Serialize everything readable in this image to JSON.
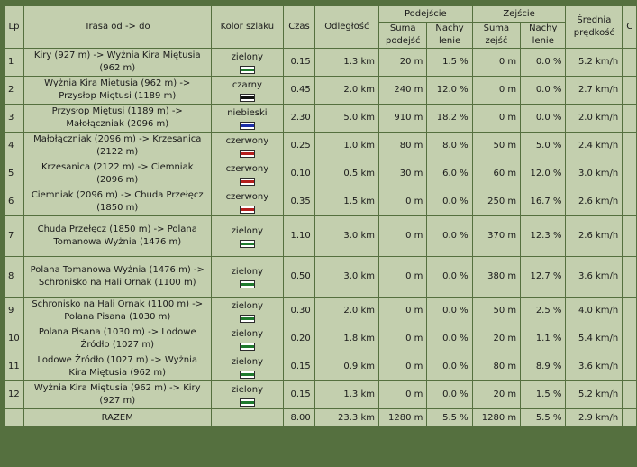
{
  "headers": {
    "lp": "Lp",
    "route": "Trasa od -> do",
    "trail_color": "Kolor szlaku",
    "time": "Czas",
    "distance": "Odległość",
    "ascent": "Podejście",
    "descent": "Zejście",
    "ascent_sum": "Suma podejść",
    "ascent_grade": "Nachy lenie",
    "descent_sum": "Suma zejść",
    "descent_grade": "Nachy lenie",
    "speed": "Średnia prędkość",
    "extra": "C"
  },
  "colors": {
    "zielony": "#1f7a2e",
    "czarny": "#111111",
    "niebieski": "#1c2fa8",
    "czerwony": "#b41e1e"
  },
  "rows": [
    {
      "lp": "1",
      "route": "Kiry (927 m) -> Wyżnia Kira Miętusia (962 m)",
      "trail": "zielony",
      "time": "0.15",
      "dist": "1.3 km",
      "asum": "20 m",
      "agrade": "1.5 %",
      "dsum": "0 m",
      "dgrade": "0.0 %",
      "speed": "5.2 km/h"
    },
    {
      "lp": "2",
      "route": "Wyżnia Kira Miętusia (962 m) -> Przysłop Miętusi (1189 m)",
      "trail": "czarny",
      "time": "0.45",
      "dist": "2.0 km",
      "asum": "240 m",
      "agrade": "12.0 %",
      "dsum": "0 m",
      "dgrade": "0.0 %",
      "speed": "2.7 km/h"
    },
    {
      "lp": "3",
      "route": "Przysłop Miętusi (1189 m) -> Małołączniak (2096 m)",
      "trail": "niebieski",
      "time": "2.30",
      "dist": "5.0 km",
      "asum": "910 m",
      "agrade": "18.2 %",
      "dsum": "0 m",
      "dgrade": "0.0 %",
      "speed": "2.0 km/h"
    },
    {
      "lp": "4",
      "route": "Małołączniak (2096 m) -> Krzesanica (2122 m)",
      "trail": "czerwony",
      "time": "0.25",
      "dist": "1.0 km",
      "asum": "80 m",
      "agrade": "8.0 %",
      "dsum": "50 m",
      "dgrade": "5.0 %",
      "speed": "2.4 km/h"
    },
    {
      "lp": "5",
      "route": "Krzesanica (2122 m) -> Ciemniak (2096 m)",
      "trail": "czerwony",
      "time": "0.10",
      "dist": "0.5 km",
      "asum": "30 m",
      "agrade": "6.0 %",
      "dsum": "60 m",
      "dgrade": "12.0 %",
      "speed": "3.0 km/h"
    },
    {
      "lp": "6",
      "route": "Ciemniak (2096 m) -> Chuda Przełęcz (1850 m)",
      "trail": "czerwony",
      "time": "0.35",
      "dist": "1.5 km",
      "asum": "0 m",
      "agrade": "0.0 %",
      "dsum": "250 m",
      "dgrade": "16.7 %",
      "speed": "2.6 km/h"
    },
    {
      "lp": "7",
      "route": "Chuda Przełęcz (1850 m) -> Polana Tomanowa Wyżnia (1476 m)",
      "trail": "zielony",
      "time": "1.10",
      "dist": "3.0 km",
      "asum": "0 m",
      "agrade": "0.0 %",
      "dsum": "370 m",
      "dgrade": "12.3 %",
      "speed": "2.6 km/h"
    },
    {
      "lp": "8",
      "route": "Polana Tomanowa Wyżnia (1476 m) -> Schronisko na Hali Ornak (1100 m)",
      "trail": "zielony",
      "time": "0.50",
      "dist": "3.0 km",
      "asum": "0 m",
      "agrade": "0.0 %",
      "dsum": "380 m",
      "dgrade": "12.7 %",
      "speed": "3.6 km/h"
    },
    {
      "lp": "9",
      "route": "Schronisko na Hali Ornak (1100 m) -> Polana Pisana (1030 m)",
      "trail": "zielony",
      "time": "0.30",
      "dist": "2.0 km",
      "asum": "0 m",
      "agrade": "0.0 %",
      "dsum": "50 m",
      "dgrade": "2.5 %",
      "speed": "4.0 km/h"
    },
    {
      "lp": "10",
      "route": "Polana Pisana (1030 m) -> Lodowe Źródło (1027 m)",
      "trail": "zielony",
      "time": "0.20",
      "dist": "1.8 km",
      "asum": "0 m",
      "agrade": "0.0 %",
      "dsum": "20 m",
      "dgrade": "1.1 %",
      "speed": "5.4 km/h"
    },
    {
      "lp": "11",
      "route": "Lodowe Źródło (1027 m) -> Wyżnia Kira Miętusia (962 m)",
      "trail": "zielony",
      "time": "0.15",
      "dist": "0.9 km",
      "asum": "0 m",
      "agrade": "0.0 %",
      "dsum": "80 m",
      "dgrade": "8.9 %",
      "speed": "3.6 km/h"
    },
    {
      "lp": "12",
      "route": "Wyżnia Kira Miętusia (962 m) -> Kiry (927 m)",
      "trail": "zielony",
      "time": "0.15",
      "dist": "1.3 km",
      "asum": "0 m",
      "agrade": "0.0 %",
      "dsum": "20 m",
      "dgrade": "1.5 %",
      "speed": "5.2 km/h"
    }
  ],
  "totals": {
    "label": "RAZEM",
    "time": "8.00",
    "dist": "23.3 km",
    "asum": "1280 m",
    "agrade": "5.5 %",
    "dsum": "1280 m",
    "dgrade": "5.5 %",
    "speed": "2.9 km/h"
  }
}
